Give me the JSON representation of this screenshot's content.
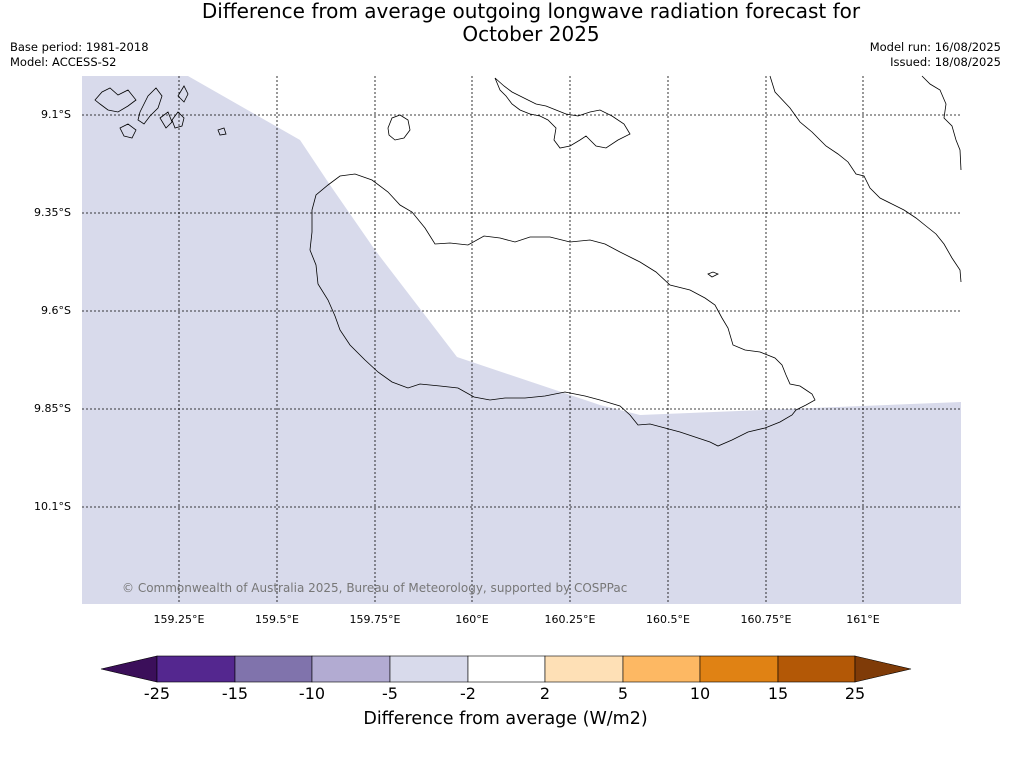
{
  "title_line1": "Difference from average outgoing longwave radiation forecast for",
  "title_line2": "October 2025",
  "base_period": "Base period: 1981-2018",
  "model": "Model: ACCESS-S2",
  "model_run": "Model run: 16/08/2025",
  "issued": "Issued: 18/08/2025",
  "copyright": "© Commonwealth of Australia 2025, Bureau of Meteorology, supported by COSPPac",
  "lat_labels": [
    "9.1°S",
    "9.35°S",
    "9.6°S",
    "9.85°S",
    "10.1°S"
  ],
  "lon_labels": [
    "159.25°E",
    "159.5°E",
    "159.75°E",
    "160°E",
    "160.25°E",
    "160.5°E",
    "160.75°E",
    "161°E"
  ],
  "colorbar": {
    "title": "Difference from average (W/m2)",
    "tick_labels": [
      "-25",
      "-15",
      "-10",
      "-5",
      "-2",
      "2",
      "5",
      "10",
      "15",
      "25"
    ],
    "colors": [
      "#3b0f5a",
      "#54278f",
      "#8073ac",
      "#b2abd2",
      "#d8daeb",
      "#ffffff",
      "#fee0b6",
      "#fdb863",
      "#e08214",
      "#b35806",
      "#7f3b08"
    ]
  },
  "map_colors": {
    "anomaly_fill": "#d8daeb",
    "neutral_fill": "#ffffff"
  }
}
